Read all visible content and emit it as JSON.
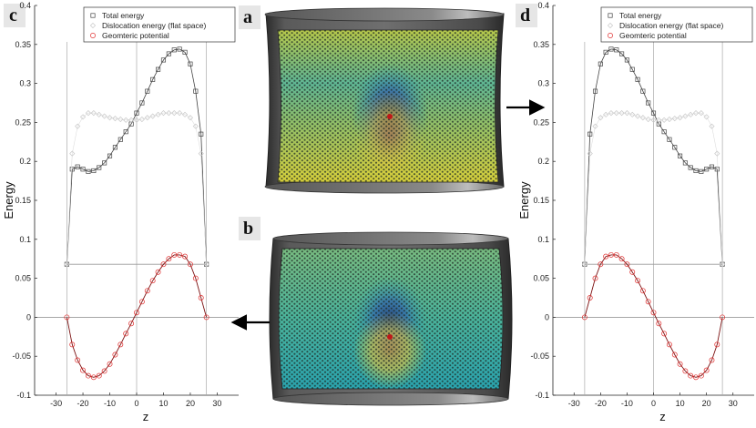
{
  "chart_data": [
    {
      "panel": "c",
      "type": "line",
      "xlabel": "z",
      "ylabel": "Energy",
      "xlim": [
        -38,
        38
      ],
      "ylim": [
        -0.1,
        0.4
      ],
      "xticks": [
        -30,
        -20,
        -10,
        0,
        10,
        20,
        30
      ],
      "yticks": [
        -0.1,
        -0.05,
        0,
        0.05,
        0.1,
        0.15,
        0.2,
        0.25,
        0.3,
        0.35,
        0.4
      ],
      "ytick_labels": [
        "-0.1",
        "-0.05",
        "0",
        "0.05",
        "0.1",
        "0.15",
        "0.2",
        "0.25",
        "0.3",
        "0.35",
        "0.4"
      ],
      "legend": [
        "Total energy",
        "Dislocation energy (flat space)",
        "Geomteric potential"
      ],
      "vlines": [
        -26,
        0,
        26
      ],
      "series": [
        {
          "name": "Total energy",
          "x": [
            -26,
            -24,
            -22,
            -20,
            -18,
            -16,
            -14,
            -12,
            -10,
            -8,
            -6,
            -4,
            -2,
            0,
            2,
            4,
            6,
            8,
            10,
            12,
            14,
            16,
            18,
            20,
            22,
            24,
            26
          ],
          "y": [
            0.068,
            0.19,
            0.193,
            0.19,
            0.187,
            0.188,
            0.192,
            0.198,
            0.207,
            0.218,
            0.228,
            0.238,
            0.248,
            0.262,
            0.275,
            0.29,
            0.305,
            0.318,
            0.33,
            0.338,
            0.343,
            0.344,
            0.34,
            0.325,
            0.29,
            0.235,
            0.068
          ]
        },
        {
          "name": "Dislocation energy (flat space)",
          "x": [
            -26,
            -24,
            -22,
            -20,
            -18,
            -16,
            -14,
            -12,
            -10,
            -8,
            -6,
            -4,
            -2,
            0,
            2,
            4,
            6,
            8,
            10,
            12,
            14,
            16,
            18,
            20,
            22,
            24,
            26
          ],
          "y": [
            0.068,
            0.21,
            0.245,
            0.257,
            0.262,
            0.262,
            0.26,
            0.258,
            0.256,
            0.255,
            0.254,
            0.253,
            0.253,
            0.253,
            0.254,
            0.256,
            0.258,
            0.26,
            0.262,
            0.262,
            0.262,
            0.262,
            0.26,
            0.256,
            0.245,
            0.21,
            0.068
          ]
        },
        {
          "name": "Geomteric potential",
          "x": [
            -26,
            -24,
            -22,
            -20,
            -18,
            -16,
            -14,
            -12,
            -10,
            -8,
            -6,
            -4,
            -2,
            0,
            2,
            4,
            6,
            8,
            10,
            12,
            14,
            16,
            18,
            20,
            22,
            24,
            26
          ],
          "y": [
            0,
            -0.035,
            -0.055,
            -0.068,
            -0.075,
            -0.077,
            -0.075,
            -0.069,
            -0.06,
            -0.048,
            -0.035,
            -0.021,
            -0.008,
            0.006,
            0.02,
            0.034,
            0.047,
            0.058,
            0.068,
            0.075,
            0.08,
            0.08,
            0.078,
            0.068,
            0.05,
            0.025,
            0
          ]
        }
      ]
    },
    {
      "panel": "d",
      "type": "line",
      "xlabel": "z",
      "ylabel": "Energy",
      "xlim": [
        -38,
        38
      ],
      "ylim": [
        -0.1,
        0.4
      ],
      "xticks": [
        -30,
        -20,
        -10,
        0,
        10,
        20,
        30
      ],
      "yticks": [
        -0.1,
        -0.05,
        0,
        0.05,
        0.1,
        0.15,
        0.2,
        0.25,
        0.3,
        0.35,
        0.4
      ],
      "ytick_labels": [
        "-0.1",
        "-0.05",
        "0",
        "0.05",
        "0.1",
        "0.15",
        "0.2",
        "0.25",
        "0.3",
        "0.35",
        "0.4"
      ],
      "legend": [
        "Total energy",
        "Dislocation energy (flat space)",
        "Geomteric potential"
      ],
      "vlines": [
        -26,
        0,
        26
      ],
      "series": [
        {
          "name": "Total energy",
          "x": [
            -26,
            -24,
            -22,
            -20,
            -18,
            -16,
            -14,
            -12,
            -10,
            -8,
            -6,
            -4,
            -2,
            0,
            2,
            4,
            6,
            8,
            10,
            12,
            14,
            16,
            18,
            20,
            22,
            24,
            26
          ],
          "y": [
            0.068,
            0.235,
            0.29,
            0.325,
            0.34,
            0.344,
            0.343,
            0.338,
            0.33,
            0.318,
            0.305,
            0.29,
            0.275,
            0.262,
            0.248,
            0.238,
            0.228,
            0.218,
            0.207,
            0.198,
            0.192,
            0.188,
            0.187,
            0.19,
            0.193,
            0.19,
            0.068
          ]
        },
        {
          "name": "Dislocation energy (flat space)",
          "x": [
            -26,
            -24,
            -22,
            -20,
            -18,
            -16,
            -14,
            -12,
            -10,
            -8,
            -6,
            -4,
            -2,
            0,
            2,
            4,
            6,
            8,
            10,
            12,
            14,
            16,
            18,
            20,
            22,
            24,
            26
          ],
          "y": [
            0.068,
            0.21,
            0.245,
            0.256,
            0.26,
            0.262,
            0.262,
            0.262,
            0.262,
            0.26,
            0.258,
            0.256,
            0.254,
            0.253,
            0.253,
            0.253,
            0.254,
            0.255,
            0.256,
            0.258,
            0.26,
            0.262,
            0.262,
            0.257,
            0.245,
            0.21,
            0.068
          ]
        },
        {
          "name": "Geomteric potential",
          "x": [
            -26,
            -24,
            -22,
            -20,
            -18,
            -16,
            -14,
            -12,
            -10,
            -8,
            -6,
            -4,
            -2,
            0,
            2,
            4,
            6,
            8,
            10,
            12,
            14,
            16,
            18,
            20,
            22,
            24,
            26
          ],
          "y": [
            0,
            0.025,
            0.05,
            0.068,
            0.078,
            0.08,
            0.08,
            0.075,
            0.068,
            0.058,
            0.047,
            0.034,
            0.02,
            0.006,
            -0.008,
            -0.021,
            -0.035,
            -0.048,
            -0.06,
            -0.069,
            -0.075,
            -0.077,
            -0.075,
            -0.068,
            -0.055,
            -0.035,
            0
          ]
        }
      ]
    }
  ],
  "panels": {
    "a_label": "a",
    "b_label": "b",
    "c_label": "c",
    "d_label": "d"
  },
  "colors": {
    "total": "#444444",
    "flat": "#c8c8c8",
    "geometric": "#e03030",
    "geometric_line": "#7a1010",
    "hline": "#888888",
    "cylinder_dark": "#3a3a3a",
    "cylinder_light": "#9a9a9a",
    "field_low": "#26a8b0",
    "field_high": "#d9cf3a"
  }
}
